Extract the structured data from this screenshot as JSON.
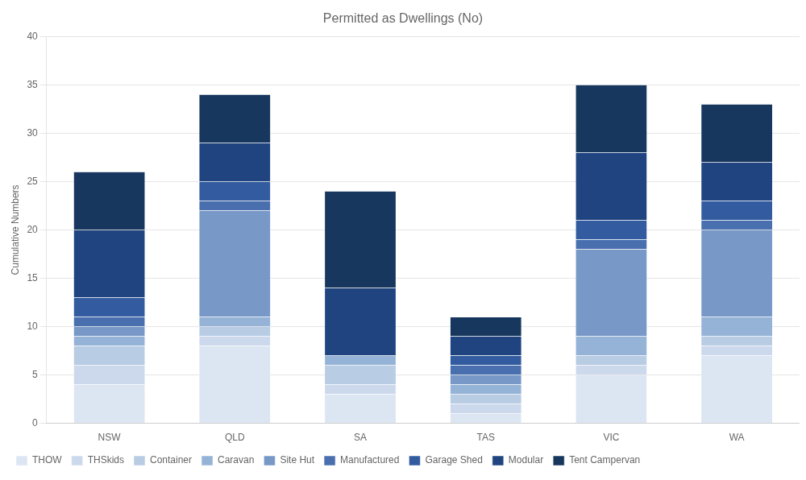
{
  "chart_data": {
    "type": "bar",
    "stacked": true,
    "title": "Permitted as Dwellings (No)",
    "ylabel": "Cumulative Numbers",
    "categories": [
      "NSW",
      "QLD",
      "SA",
      "TAS",
      "VIC",
      "WA"
    ],
    "series": [
      {
        "name": "THOW",
        "color": "#dce6f3",
        "values": [
          4,
          8,
          3,
          1,
          5,
          7
        ]
      },
      {
        "name": "THSkids",
        "color": "#ccd9ed",
        "values": [
          2,
          1,
          1,
          1,
          1,
          1
        ]
      },
      {
        "name": "Container",
        "color": "#b8cce4",
        "values": [
          2,
          1,
          2,
          1,
          1,
          1
        ]
      },
      {
        "name": "Caravan",
        "color": "#95b3d7",
        "values": [
          1,
          1,
          1,
          1,
          2,
          2
        ]
      },
      {
        "name": "Site Hut",
        "color": "#7898c7",
        "values": [
          1,
          11,
          0,
          1,
          9,
          9
        ]
      },
      {
        "name": "Manufactured",
        "color": "#4a6faf",
        "values": [
          1,
          1,
          0,
          1,
          1,
          1
        ]
      },
      {
        "name": "Garage Shed",
        "color": "#335ca0",
        "values": [
          2,
          2,
          0,
          1,
          2,
          2
        ]
      },
      {
        "name": "Modular",
        "color": "#1f4480",
        "values": [
          7,
          4,
          7,
          2,
          7,
          4
        ]
      },
      {
        "name": "Tent Campervan",
        "color": "#17375e",
        "values": [
          6,
          5,
          10,
          2,
          7,
          6
        ]
      }
    ],
    "ylim": [
      0,
      40
    ],
    "yticks": [
      0,
      5,
      10,
      15,
      20,
      25,
      30,
      35,
      40
    ],
    "grid": true,
    "legend": "bottom"
  }
}
